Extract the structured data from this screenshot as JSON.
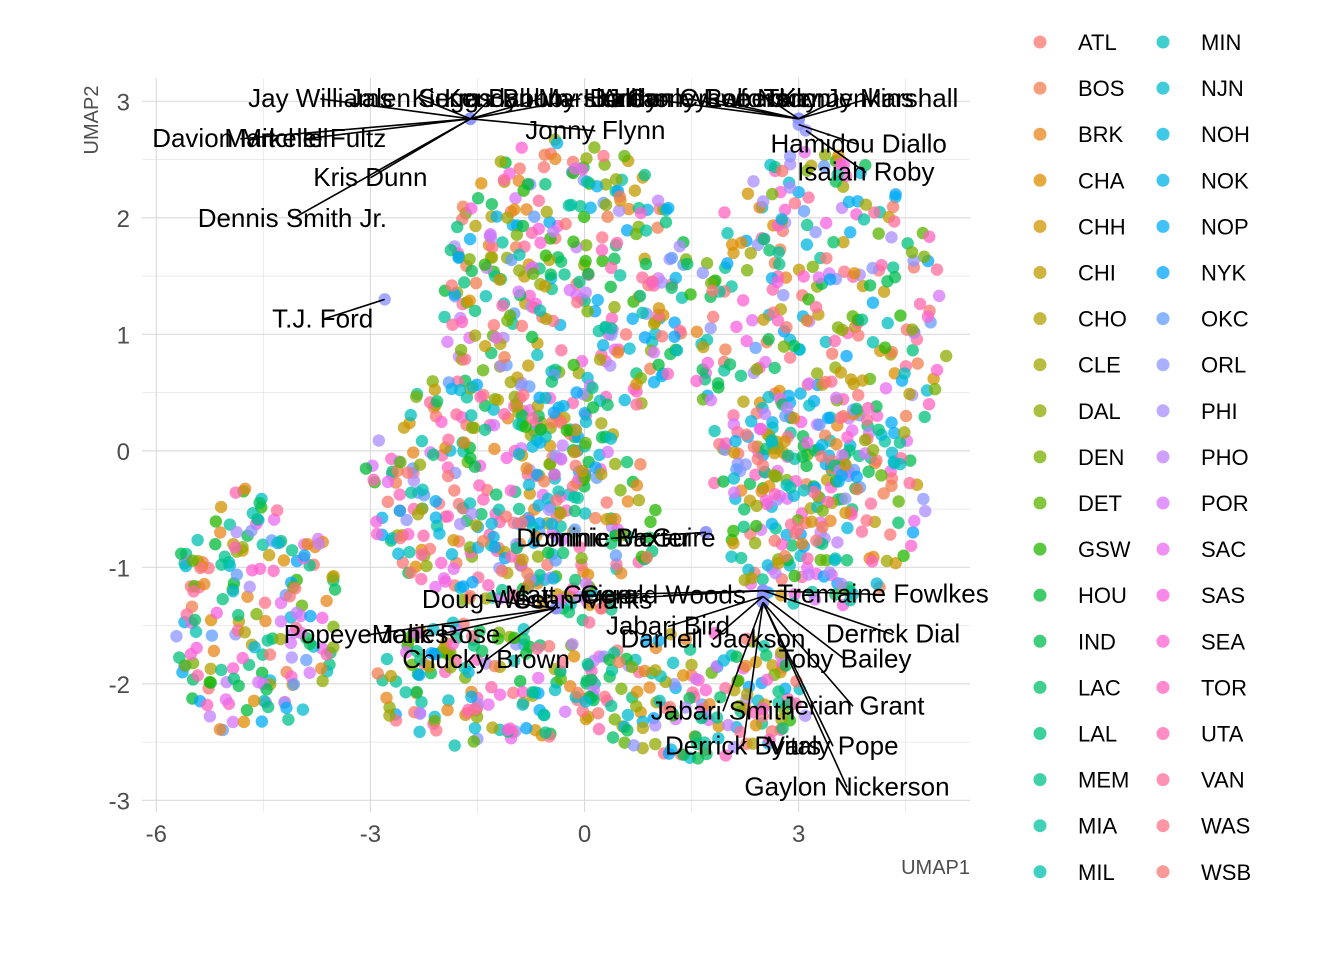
{
  "chart_data": {
    "type": "scatter",
    "title": "",
    "xlabel": "UMAP1",
    "ylabel": "UMAP2",
    "xlim": [
      -6.2,
      5.4
    ],
    "ylim": [
      -3.1,
      3.2
    ],
    "x_ticks": [
      -6,
      -3,
      0,
      3
    ],
    "y_ticks": [
      -3,
      -2,
      -1,
      0,
      1,
      2,
      3
    ],
    "x_tick_labels": [
      "-6",
      "-3",
      "0",
      "3"
    ],
    "y_tick_labels": [
      "-3",
      "-2",
      "-1",
      "0",
      "1",
      "2",
      "3"
    ],
    "grid": true,
    "legend_position": "right",
    "teams": [
      "ATL",
      "BOS",
      "BRK",
      "CHA",
      "CHH",
      "CHI",
      "CHO",
      "CLE",
      "DAL",
      "DEN",
      "DET",
      "GSW",
      "HOU",
      "IND",
      "LAC",
      "LAL",
      "MEM",
      "MIA",
      "MIL",
      "MIN",
      "NJN",
      "NOH",
      "NOK",
      "NOP",
      "NYK",
      "OKC",
      "ORL",
      "PHI",
      "PHO",
      "POR",
      "SAC",
      "SAS",
      "SEA",
      "TOR",
      "UTA",
      "VAN",
      "WAS",
      "WSB"
    ],
    "team_colors": [
      "#F8766D",
      "#F17D50",
      "#E7861B",
      "#DD8D00",
      "#D09400",
      "#C29A00",
      "#B3A000",
      "#A2A500",
      "#8FAA00",
      "#78AF00",
      "#5BB300",
      "#24B700",
      "#00BA38",
      "#00BC50",
      "#00BF65",
      "#00C079",
      "#00C18C",
      "#00C19E",
      "#00C0AF",
      "#00BEC0",
      "#00BBCF",
      "#00B7DD",
      "#00B2EA",
      "#00ACF5",
      "#00A5FF",
      "#619CFF",
      "#8D95FF",
      "#AB8DFF",
      "#C280FF",
      "#D874FD",
      "#E86BF0",
      "#F561E2",
      "#FF61D1",
      "#FF63C0",
      "#FF67AF",
      "#FF6C9C",
      "#FF7287",
      "#FB7575"
    ],
    "cloud_note": "background points are a dense cloud of ~1500 player seasons colored by team",
    "labeled_points": [
      {
        "name": "Jay Williams",
        "x": -1.6,
        "y": 2.85
      },
      {
        "name": "Jalen Suggs",
        "x": -1.6,
        "y": 2.85
      },
      {
        "name": "Kendall Marshall",
        "x": -1.6,
        "y": 2.85
      },
      {
        "name": "Kierra Bynum",
        "x": -1.6,
        "y": 2.85
      },
      {
        "name": "Bobby Hurley",
        "x": -1.6,
        "y": 2.85
      },
      {
        "name": "Davion Mitchell",
        "x": -1.6,
        "y": 2.85
      },
      {
        "name": "Markelle Fultz",
        "x": -1.6,
        "y": 2.85
      },
      {
        "name": "Jonny Flynn",
        "x": -1.6,
        "y": 2.85
      },
      {
        "name": "Kris Dunn",
        "x": -1.6,
        "y": 2.85
      },
      {
        "name": "Dennis Smith Jr.",
        "x": -1.6,
        "y": 2.85
      },
      {
        "name": "T.J. Ford",
        "x": -2.8,
        "y": 1.3
      },
      {
        "name": "BJ Conley",
        "x": 3.0,
        "y": 2.85
      },
      {
        "name": "Anthony Roberson",
        "x": 3.0,
        "y": 2.85
      },
      {
        "name": "Lee Nailon",
        "x": 3.0,
        "y": 2.85
      },
      {
        "name": "Jordan Crawford",
        "x": 3.0,
        "y": 2.85
      },
      {
        "name": "Tony Jenkins",
        "x": 3.0,
        "y": 2.85
      },
      {
        "name": "Kenny Marshall",
        "x": 3.0,
        "y": 2.85
      },
      {
        "name": "Hamidou Diallo",
        "x": 3.0,
        "y": 2.8
      },
      {
        "name": "Isaiah Roby",
        "x": 3.1,
        "y": 2.75
      },
      {
        "name": "Lonnie Baxter",
        "x": 1.7,
        "y": -0.7
      },
      {
        "name": "Dominic McGuire",
        "x": 1.7,
        "y": -0.7
      },
      {
        "name": "Tremaine Fowlkes",
        "x": 2.5,
        "y": -1.2
      },
      {
        "name": "Matt Geiger",
        "x": 2.5,
        "y": -1.2
      },
      {
        "name": "Sean Marks",
        "x": 2.5,
        "y": -1.2
      },
      {
        "name": "Gerald Woods",
        "x": 2.5,
        "y": -1.2
      },
      {
        "name": "Derrick Dial",
        "x": 2.5,
        "y": -1.2
      },
      {
        "name": "Darnell Jackson",
        "x": 2.5,
        "y": -1.25
      },
      {
        "name": "Toby Bailey",
        "x": 2.5,
        "y": -1.25
      },
      {
        "name": "Jabari Bird",
        "x": 2.5,
        "y": -1.25
      },
      {
        "name": "Doug West",
        "x": -0.4,
        "y": -1.35
      },
      {
        "name": "Popeye Jones",
        "x": -0.4,
        "y": -1.35
      },
      {
        "name": "Malik Rose",
        "x": -0.4,
        "y": -1.35
      },
      {
        "name": "Chucky Brown",
        "x": -0.4,
        "y": -1.35
      },
      {
        "name": "Jabari Smith",
        "x": 2.5,
        "y": -1.3
      },
      {
        "name": "Jerian Grant",
        "x": 2.5,
        "y": -1.3
      },
      {
        "name": "Derrick Byars",
        "x": 2.5,
        "y": -1.3
      },
      {
        "name": "Vitaly Pope",
        "x": 2.5,
        "y": -1.3
      },
      {
        "name": "Gaylon Nickerson",
        "x": 2.5,
        "y": -1.3
      }
    ]
  }
}
